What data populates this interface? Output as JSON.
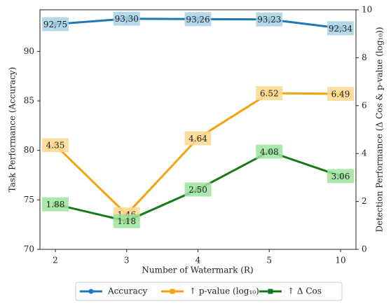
{
  "chart_data": {
    "type": "line",
    "x_label": "Number of Watermark (R)",
    "y_label": "Task Performance (Accuracy)",
    "y2_label": "Detection Performance (Δ Cos & p-value (log₁₀))",
    "categories": [
      "2",
      "3",
      "4",
      "5",
      "10"
    ],
    "ylim": [
      70,
      94.2
    ],
    "yticks": [
      70,
      75,
      80,
      85,
      90
    ],
    "y2lim": [
      0,
      10
    ],
    "y2ticks": [
      0,
      2,
      4,
      6,
      8,
      10
    ],
    "legend": "bottom",
    "series": [
      {
        "name": "Accuracy",
        "color": "#1f77b4",
        "label_bg": "#a9d2e6",
        "marker": "circle",
        "axis": "y",
        "values": [
          92.75,
          93.3,
          93.26,
          93.23,
          92.34
        ],
        "value_labels": [
          "92,75",
          "93,30",
          "93,26",
          "93,23",
          "92,34"
        ]
      },
      {
        "name": "↑ p-value (log₁₀)",
        "color": "#f5a20f",
        "label_bg": "#fbd98f",
        "marker": "square",
        "axis": "y2",
        "values": [
          4.35,
          1.46,
          4.64,
          6.52,
          6.49
        ],
        "value_labels": [
          "4.35",
          "1.46",
          "4.64",
          "6.52",
          "6.49"
        ]
      },
      {
        "name": "↑ Δ Cos",
        "color": "#177a17",
        "label_bg": "#9ee39e",
        "marker": "square",
        "axis": "y2",
        "values": [
          1.88,
          1.18,
          2.5,
          4.08,
          3.06
        ],
        "value_labels": [
          "1.88",
          "1.18",
          "2.50",
          "4.08",
          "3.06"
        ]
      }
    ]
  }
}
